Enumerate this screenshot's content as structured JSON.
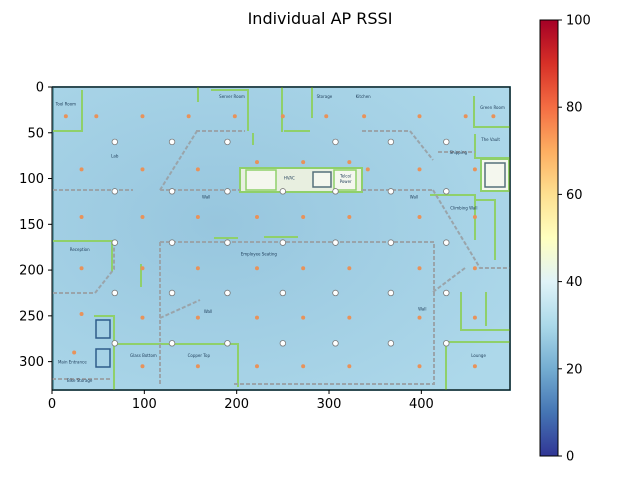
{
  "chart_data": {
    "type": "heatmap",
    "title": "Individual AP RSSI",
    "xlabel": "",
    "ylabel": "",
    "xlim": [
      0,
      496
    ],
    "ylim": [
      331,
      0
    ],
    "x_ticks": [
      0,
      100,
      200,
      300,
      400
    ],
    "y_ticks": [
      0,
      50,
      100,
      150,
      200,
      250,
      300
    ],
    "colorbar": {
      "min": 0,
      "max": 100,
      "ticks": [
        0,
        20,
        40,
        60,
        80,
        100
      ],
      "colormap": "RdYlBu_r"
    },
    "field": {
      "base_rssi": 26,
      "peak_rssi": 22,
      "peak_x": 180,
      "peak_y": 150
    },
    "ap_markers": [
      [
        68,
        60
      ],
      [
        130,
        60
      ],
      [
        190,
        60
      ],
      [
        307,
        60
      ],
      [
        367,
        60
      ],
      [
        427,
        60
      ],
      [
        68,
        114
      ],
      [
        130,
        114
      ],
      [
        190,
        114
      ],
      [
        250,
        114
      ],
      [
        307,
        114
      ],
      [
        367,
        114
      ],
      [
        427,
        114
      ],
      [
        68,
        170
      ],
      [
        130,
        170
      ],
      [
        190,
        170
      ],
      [
        250,
        170
      ],
      [
        307,
        170
      ],
      [
        367,
        170
      ],
      [
        427,
        170
      ],
      [
        68,
        225
      ],
      [
        130,
        225
      ],
      [
        190,
        225
      ],
      [
        250,
        225
      ],
      [
        307,
        225
      ],
      [
        367,
        225
      ],
      [
        427,
        225
      ],
      [
        68,
        280
      ],
      [
        130,
        280
      ],
      [
        190,
        280
      ],
      [
        250,
        280
      ],
      [
        307,
        280
      ],
      [
        367,
        280
      ],
      [
        427,
        280
      ]
    ],
    "grid_points": [
      [
        15,
        32
      ],
      [
        48,
        32
      ],
      [
        98,
        32
      ],
      [
        148,
        32
      ],
      [
        198,
        32
      ],
      [
        250,
        32
      ],
      [
        297,
        32
      ],
      [
        338,
        32
      ],
      [
        398,
        32
      ],
      [
        448,
        32
      ],
      [
        478,
        32
      ],
      [
        32,
        90
      ],
      [
        98,
        90
      ],
      [
        158,
        90
      ],
      [
        222,
        82
      ],
      [
        272,
        82
      ],
      [
        322,
        82
      ],
      [
        342,
        90
      ],
      [
        398,
        90
      ],
      [
        458,
        90
      ],
      [
        32,
        142
      ],
      [
        98,
        142
      ],
      [
        158,
        142
      ],
      [
        222,
        142
      ],
      [
        272,
        142
      ],
      [
        322,
        142
      ],
      [
        398,
        142
      ],
      [
        458,
        142
      ],
      [
        32,
        198
      ],
      [
        98,
        198
      ],
      [
        158,
        198
      ],
      [
        222,
        198
      ],
      [
        272,
        198
      ],
      [
        322,
        198
      ],
      [
        398,
        198
      ],
      [
        458,
        198
      ],
      [
        32,
        248
      ],
      [
        98,
        252
      ],
      [
        158,
        252
      ],
      [
        222,
        252
      ],
      [
        272,
        252
      ],
      [
        322,
        252
      ],
      [
        398,
        252
      ],
      [
        458,
        252
      ],
      [
        24,
        290
      ],
      [
        98,
        305
      ],
      [
        158,
        305
      ],
      [
        222,
        305
      ],
      [
        272,
        305
      ],
      [
        322,
        305
      ],
      [
        398,
        305
      ],
      [
        458,
        305
      ]
    ],
    "room_labels": [
      {
        "text": "Tool Room",
        "x": 15,
        "y": 20
      },
      {
        "text": "Server Room",
        "x": 195,
        "y": 12
      },
      {
        "text": "Storage",
        "x": 295,
        "y": 12
      },
      {
        "text": "Kitchen",
        "x": 337,
        "y": 12
      },
      {
        "text": "Green Room",
        "x": 477,
        "y": 24
      },
      {
        "text": "The Vault",
        "x": 475,
        "y": 59
      },
      {
        "text": "Lab",
        "x": 68,
        "y": 77
      },
      {
        "text": "Shipping",
        "x": 440,
        "y": 73
      },
      {
        "text": "HVAC",
        "x": 257,
        "y": 101
      },
      {
        "text": "Telco/",
        "x": 318,
        "y": 99
      },
      {
        "text": "Power",
        "x": 318,
        "y": 105
      },
      {
        "text": "Wall",
        "x": 167,
        "y": 122
      },
      {
        "text": "Wall",
        "x": 392,
        "y": 122
      },
      {
        "text": "Climbing Wall",
        "x": 446,
        "y": 134
      },
      {
        "text": "Reception",
        "x": 30,
        "y": 179
      },
      {
        "text": "Employee Seating",
        "x": 224,
        "y": 184
      },
      {
        "text": "Wall",
        "x": 169,
        "y": 247
      },
      {
        "text": "Wall",
        "x": 401,
        "y": 244
      },
      {
        "text": "Glass Bottom",
        "x": 99,
        "y": 295
      },
      {
        "text": "Copper Top",
        "x": 159,
        "y": 295
      },
      {
        "text": "Lounge",
        "x": 462,
        "y": 295
      },
      {
        "text": "Main Entrance",
        "x": 22,
        "y": 302
      },
      {
        "text": "Bike Storage",
        "x": 30,
        "y": 322
      }
    ]
  }
}
